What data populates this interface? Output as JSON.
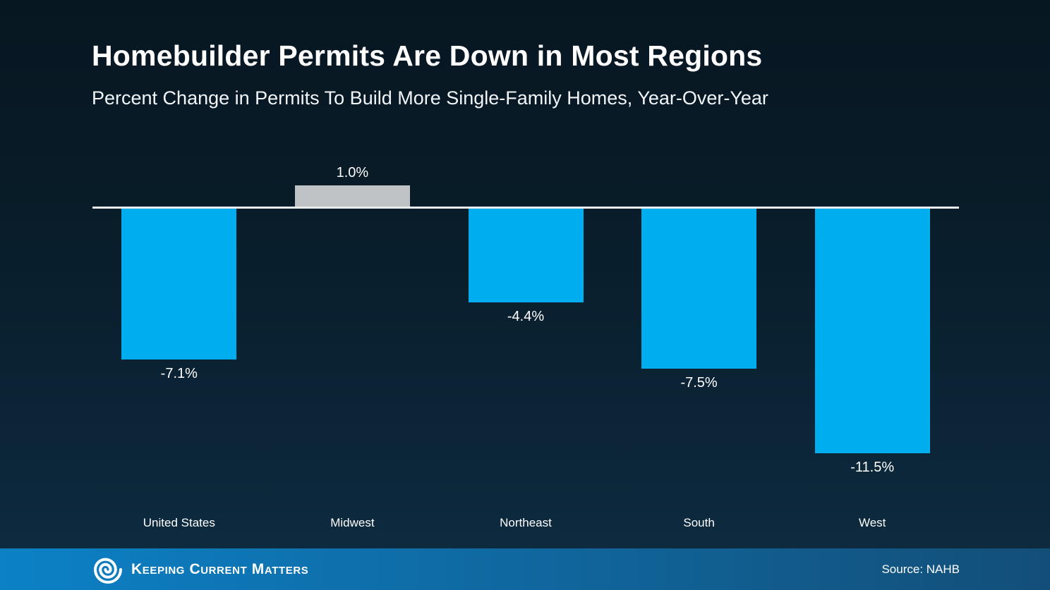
{
  "header": {
    "title": "Homebuilder Permits Are Down in Most Regions",
    "subtitle": "Percent Change in Permits To Build More Single-Family Homes, Year-Over-Year"
  },
  "chart_data": {
    "type": "bar",
    "categories": [
      "United States",
      "Midwest",
      "Northeast",
      "South",
      "West"
    ],
    "values": [
      -7.1,
      1.0,
      -4.4,
      -7.5,
      -11.5
    ],
    "labels": [
      "-7.1%",
      "1.0%",
      "-4.4%",
      "-7.5%",
      "-11.5%"
    ],
    "title": "Homebuilder Permits Are Down in Most Regions",
    "subtitle": "Percent Change in Permits To Build More Single-Family Homes, Year-Over-Year",
    "xlabel": "",
    "ylabel": "",
    "ylim": [
      -12,
      2
    ],
    "grid": false,
    "legend": false,
    "baseline_at_zero": true,
    "colors": {
      "negative_bar": "#00AEEF",
      "positive_bar": "#BFC3C6",
      "baseline": "#E8ECEC",
      "background_top": "#071722",
      "background_bottom": "#0E2C42",
      "text": "#FFFFFF"
    }
  },
  "footer": {
    "brand": "Keeping Current Matters",
    "logo_icon": "kcm-spiral-icon",
    "source_label": "Source: NAHB",
    "gradient_left": "#0C81C6",
    "gradient_right": "#134E78"
  }
}
